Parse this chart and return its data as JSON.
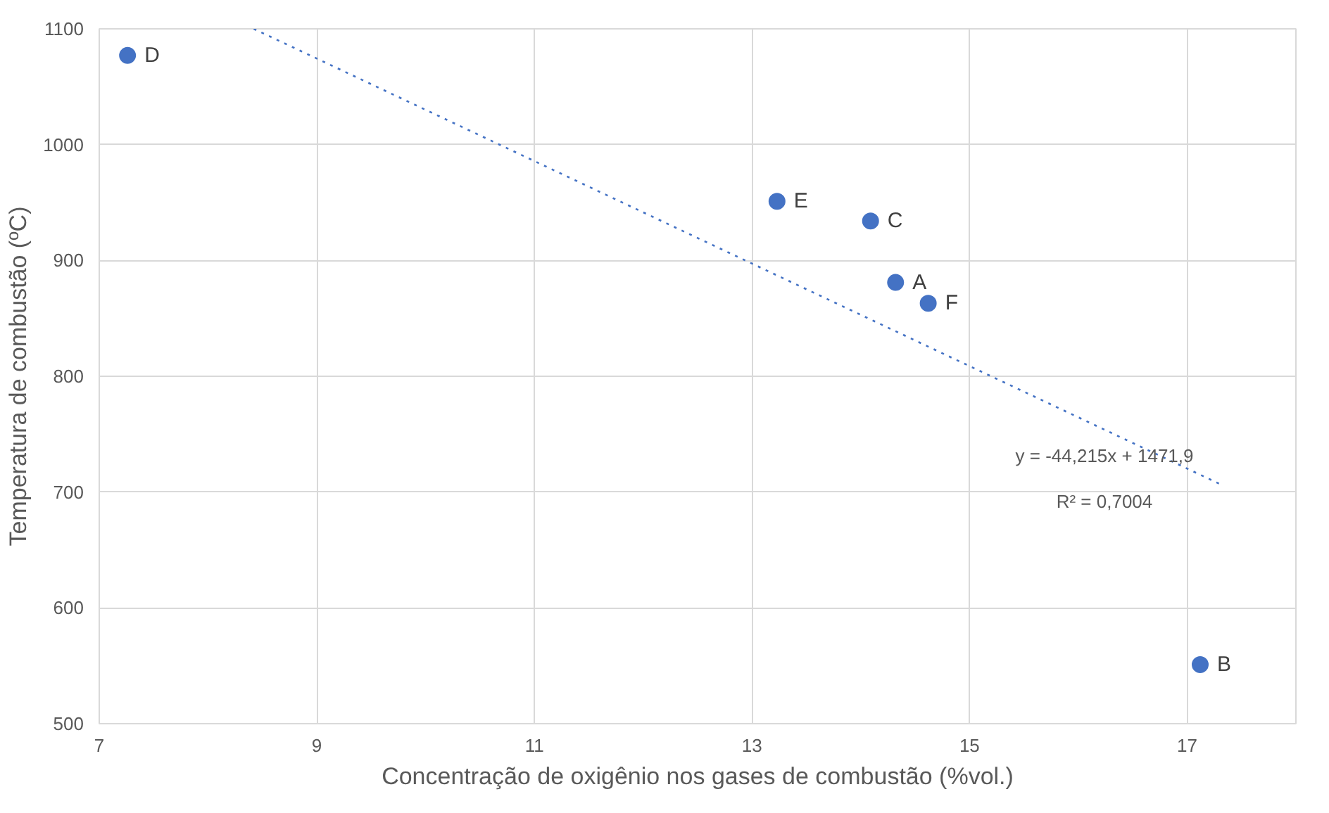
{
  "chart_data": {
    "type": "scatter",
    "xlabel": "Concentração de oxigênio nos gases de combustão (%vol.)",
    "ylabel": "Temperatura de combustão (ºC)",
    "xlim": [
      7,
      18
    ],
    "xticks": [
      7,
      9,
      11,
      13,
      15,
      17
    ],
    "ylim": [
      500,
      1100
    ],
    "yticks": [
      500,
      600,
      700,
      800,
      900,
      1000,
      1100
    ],
    "grid": true,
    "marker": "circle",
    "series": [
      {
        "color": "#4472c4",
        "x": [
          14.32,
          17.12,
          14.09,
          7.26,
          13.23,
          14.62
        ],
        "values": [
          881,
          551,
          934,
          1077,
          951,
          863
        ]
      },
      {
        "type": "line",
        "color": "#4472c4",
        "marker": "none",
        "line_style": "dotted",
        "x": [
          8.42,
          17.3
        ],
        "values": [
          1100,
          707
        ]
      }
    ],
    "annotations": [
      {
        "text": "A",
        "x": 14.32,
        "y": 881
      },
      {
        "text": "B",
        "x": 17.12,
        "y": 551
      },
      {
        "text": "C",
        "x": 14.09,
        "y": 934
      },
      {
        "text": "D",
        "x": 7.26,
        "y": 1077
      },
      {
        "text": "E",
        "x": 13.23,
        "y": 951
      },
      {
        "text": "F",
        "x": 14.62,
        "y": 863
      },
      "y = -44,215x + 1471,9",
      "R² = 0,7004"
    ]
  }
}
